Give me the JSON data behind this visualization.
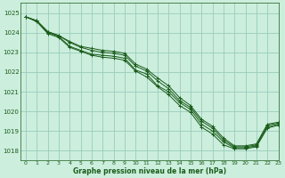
{
  "bg_color": "#cceedd",
  "grid_color": "#99ccbb",
  "line_color": "#1a5c1a",
  "marker_color": "#1a5c1a",
  "xlabel": "Graphe pression niveau de la mer (hPa)",
  "xlabel_color": "#1a5c1a",
  "ylabel_ticks": [
    1018,
    1019,
    1020,
    1021,
    1022,
    1023,
    1024,
    1025
  ],
  "xlim": [
    -0.5,
    23
  ],
  "ylim": [
    1017.5,
    1025.5
  ],
  "x_ticks": [
    0,
    1,
    2,
    3,
    4,
    5,
    6,
    7,
    8,
    9,
    10,
    11,
    12,
    13,
    14,
    15,
    16,
    17,
    18,
    19,
    20,
    21,
    22,
    23
  ],
  "series": [
    [
      1024.8,
      1024.6,
      1024.0,
      1023.8,
      1023.3,
      1023.1,
      1022.9,
      1022.85,
      1022.8,
      1022.7,
      1022.1,
      1021.9,
      1021.3,
      1021.0,
      1020.45,
      1020.1,
      1019.35,
      1019.0,
      1018.45,
      1018.15,
      1018.15,
      1018.25,
      1019.2,
      1019.35
    ],
    [
      1024.8,
      1024.55,
      1023.95,
      1023.75,
      1023.25,
      1023.05,
      1022.85,
      1022.75,
      1022.7,
      1022.6,
      1022.05,
      1021.75,
      1021.25,
      1020.85,
      1020.3,
      1019.95,
      1019.2,
      1018.85,
      1018.3,
      1018.1,
      1018.1,
      1018.2,
      1019.15,
      1019.3
    ],
    [
      1024.8,
      1024.6,
      1024.05,
      1023.85,
      1023.5,
      1023.25,
      1023.1,
      1023.0,
      1022.95,
      1022.85,
      1022.3,
      1022.05,
      1021.55,
      1021.15,
      1020.55,
      1020.2,
      1019.5,
      1019.15,
      1018.55,
      1018.2,
      1018.2,
      1018.3,
      1019.3,
      1019.4
    ],
    [
      1024.8,
      1024.6,
      1024.05,
      1023.85,
      1023.55,
      1023.3,
      1023.2,
      1023.1,
      1023.05,
      1022.95,
      1022.4,
      1022.15,
      1021.7,
      1021.3,
      1020.7,
      1020.3,
      1019.6,
      1019.25,
      1018.65,
      1018.25,
      1018.25,
      1018.35,
      1019.35,
      1019.45
    ]
  ]
}
